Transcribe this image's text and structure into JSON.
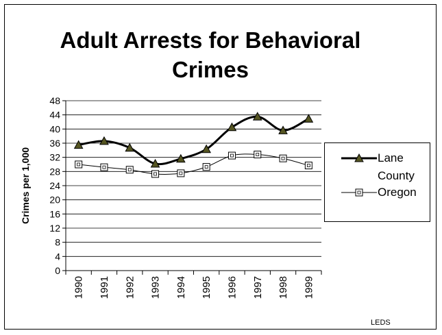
{
  "chart_data": {
    "type": "line",
    "title": "Adult Arrests for Behavioral Crimes",
    "title_lines": [
      "Adult Arrests for Behavioral",
      "Crimes"
    ],
    "xlabel": "",
    "ylabel": "Crimes per 1,000",
    "categories": [
      "1990",
      "1991",
      "1992",
      "1993",
      "1994",
      "1995",
      "1996",
      "1997",
      "1998",
      "1999"
    ],
    "ylim": [
      0,
      48
    ],
    "yticks": [
      0,
      4,
      8,
      12,
      16,
      20,
      24,
      28,
      32,
      36,
      40,
      44,
      48
    ],
    "grid": true,
    "smooth": true,
    "legend_position": "right",
    "series": [
      {
        "name": "Lane County",
        "label_lines": [
          "Lane",
          "County"
        ],
        "values": [
          35.5,
          36.6,
          34.7,
          30.2,
          31.6,
          34.3,
          40.5,
          43.5,
          39.6,
          42.9
        ],
        "color": "#000000",
        "marker_color": "#555522",
        "marker": "triangle",
        "line_width": 3
      },
      {
        "name": "Oregon",
        "label_lines": [
          "Oregon"
        ],
        "values": [
          30.0,
          29.2,
          28.5,
          27.3,
          27.5,
          29.3,
          32.5,
          32.8,
          31.7,
          29.7
        ],
        "color": "#000000",
        "marker_color": "#ffffff",
        "marker": "square",
        "line_width": 1
      }
    ]
  },
  "source": "LEDS"
}
